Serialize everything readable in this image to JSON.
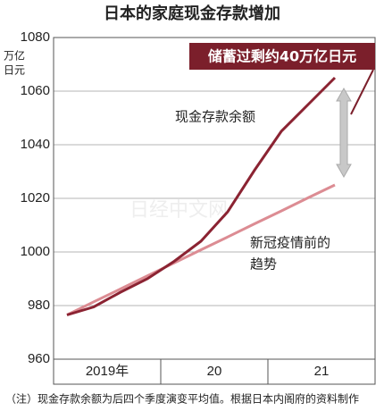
{
  "chart_data": {
    "type": "line",
    "title": "日本的家庭现金存款增加",
    "y_label": [
      "万亿",
      "日元"
    ],
    "xlim": [
      2019,
      2022
    ],
    "xticks": [
      {
        "value": 2019.5,
        "label": "2019年"
      },
      {
        "value": 2020.5,
        "label": "20"
      },
      {
        "value": 2021.5,
        "label": "21"
      }
    ],
    "x": [
      2019.125,
      2019.375,
      2019.625,
      2019.875,
      2020.125,
      2020.375,
      2020.625,
      2020.875,
      2021.125,
      2021.375,
      2021.625
    ],
    "ylim": [
      960,
      1080
    ],
    "yticks": [
      960,
      980,
      1000,
      1020,
      1040,
      1060,
      1080
    ],
    "grid": true,
    "series": [
      {
        "name": "现金存款余额",
        "color": "#8b2332",
        "values": [
          976.5,
          979.5,
          985,
          990,
          996.5,
          1004,
          1015,
          1030.5,
          1045,
          1055,
          1065
        ]
      },
      {
        "name": [
          "新冠疫情前的",
          "趋势"
        ],
        "color": "#dc8c93",
        "values": [
          976.5,
          981.4,
          986.2,
          991.1,
          995.9,
          1000.8,
          1005.6,
          1010.5,
          1015.3,
          1020.2,
          1025
        ]
      }
    ],
    "annotation": "储蓄过剩约40万亿日元",
    "watermark": "日经中文网",
    "note": "（注）现金存款余额为后四个季度演变平均值。根据日本内阁府的资料制作"
  }
}
